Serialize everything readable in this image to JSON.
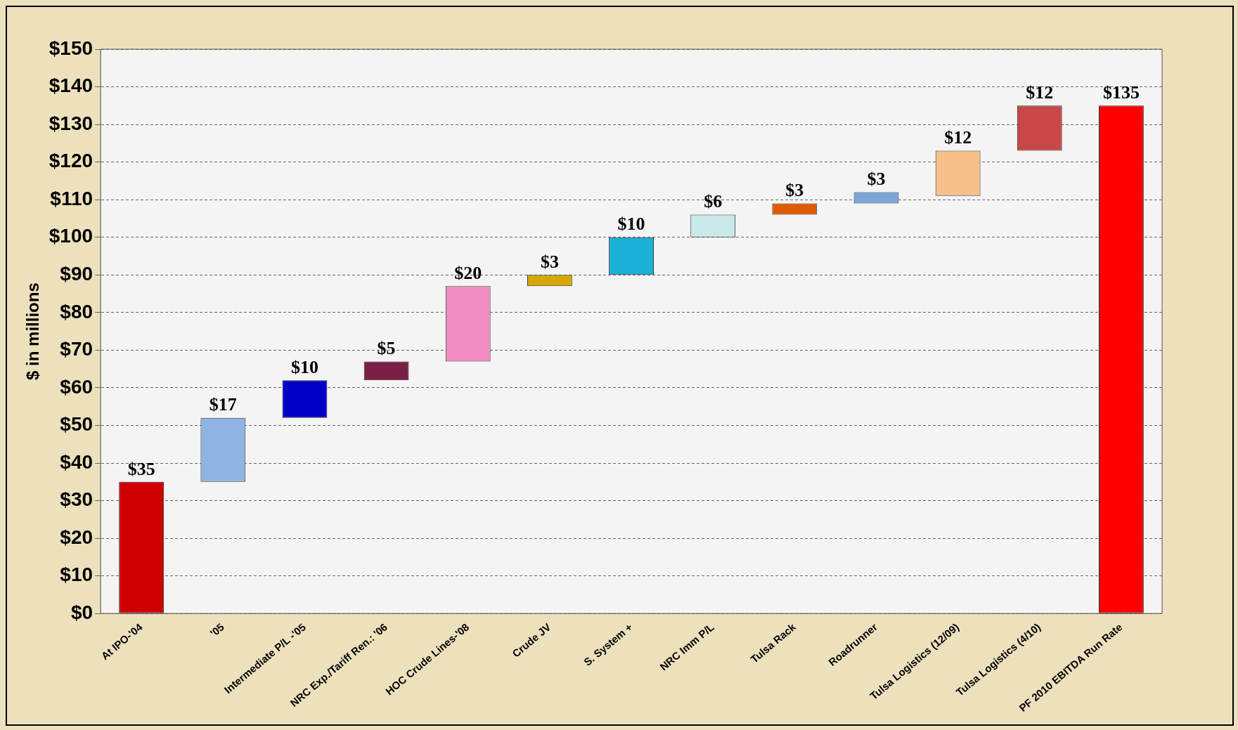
{
  "chart_data": {
    "type": "bar",
    "ylabel": "$ in millions",
    "categories": [
      "At IPO-'04",
      "'05",
      "Intermediate P/L -'05",
      "NRC Exp./Tariff Ren.: '06",
      "HOC Crude Lines-'08",
      "Crude JV",
      "S. System +",
      "NRC Imm P/L",
      "Tulsa Rack",
      "Roadrunner",
      "Tulsa Logistics (12/09)",
      "Tulsa Logistics (4/10)",
      "PF 2010 EBITDA Run Rate"
    ],
    "values": [
      35,
      17,
      10,
      5,
      20,
      3,
      10,
      6,
      3,
      3,
      12,
      12,
      135
    ],
    "base": [
      0,
      35,
      52,
      62,
      67,
      87,
      90,
      100,
      106,
      109,
      111,
      123,
      0
    ],
    "colors": [
      "#d00000",
      "#8fb4e3",
      "#0000c8",
      "#7a1f45",
      "#f08cc0",
      "#d4a800",
      "#1ab0d8",
      "#c8eaea",
      "#e05a00",
      "#7aa6d8",
      "#f5c08a",
      "#c84848",
      "#ff0000"
    ],
    "value_labels": [
      "$35",
      "$17",
      "$10",
      "$5",
      "$20",
      "$3",
      "$10",
      "$6",
      "$3",
      "$3",
      "$12",
      "$12",
      "$135"
    ],
    "ylim": [
      0,
      150
    ],
    "yticks": [
      {
        "value": 0,
        "label": "$0"
      },
      {
        "value": 10,
        "label": "$10"
      },
      {
        "value": 20,
        "label": "$20"
      },
      {
        "value": 30,
        "label": "$30"
      },
      {
        "value": 40,
        "label": "$40"
      },
      {
        "value": 50,
        "label": "$50"
      },
      {
        "value": 60,
        "label": "$60"
      },
      {
        "value": 70,
        "label": "$70"
      },
      {
        "value": 80,
        "label": "$80"
      },
      {
        "value": 90,
        "label": "$90"
      },
      {
        "value": 100,
        "label": "$100"
      },
      {
        "value": 110,
        "label": "$110"
      },
      {
        "value": 120,
        "label": "$120"
      },
      {
        "value": 130,
        "label": "$130"
      },
      {
        "value": 140,
        "label": "$140"
      },
      {
        "value": 150,
        "label": "$150"
      }
    ],
    "grid": "y",
    "line_style": "dashed"
  }
}
